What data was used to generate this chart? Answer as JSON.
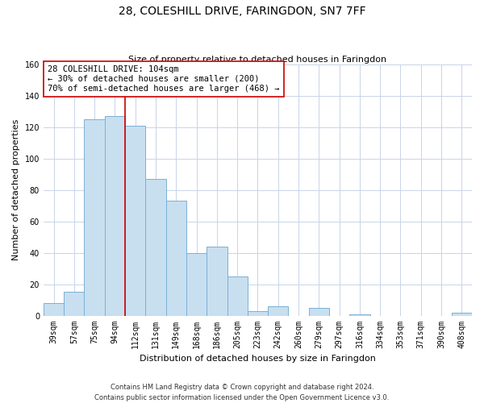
{
  "title": "28, COLESHILL DRIVE, FARINGDON, SN7 7FF",
  "subtitle": "Size of property relative to detached houses in Faringdon",
  "xlabel": "Distribution of detached houses by size in Faringdon",
  "ylabel": "Number of detached properties",
  "bar_labels": [
    "39sqm",
    "57sqm",
    "75sqm",
    "94sqm",
    "112sqm",
    "131sqm",
    "149sqm",
    "168sqm",
    "186sqm",
    "205sqm",
    "223sqm",
    "242sqm",
    "260sqm",
    "279sqm",
    "297sqm",
    "316sqm",
    "334sqm",
    "353sqm",
    "371sqm",
    "390sqm",
    "408sqm"
  ],
  "bar_values": [
    8,
    15,
    125,
    127,
    121,
    87,
    73,
    40,
    44,
    25,
    3,
    6,
    0,
    5,
    0,
    1,
    0,
    0,
    0,
    0,
    2
  ],
  "bar_color": "#c8dff0",
  "bar_edge_color": "#7ab0d4",
  "vline_x": 3.5,
  "vline_color": "#cc0000",
  "annotation_line1": "28 COLESHILL DRIVE: 104sqm",
  "annotation_line2": "← 30% of detached houses are smaller (200)",
  "annotation_line3": "70% of semi-detached houses are larger (468) →",
  "annotation_box_color": "#ffffff",
  "annotation_box_edge": "#cc0000",
  "ylim": [
    0,
    160
  ],
  "yticks": [
    0,
    20,
    40,
    60,
    80,
    100,
    120,
    140,
    160
  ],
  "footer_line1": "Contains HM Land Registry data © Crown copyright and database right 2024.",
  "footer_line2": "Contains public sector information licensed under the Open Government Licence v3.0.",
  "bg_color": "#ffffff",
  "grid_color": "#c8d4e8",
  "title_fontsize": 10,
  "subtitle_fontsize": 8,
  "axis_label_fontsize": 8,
  "tick_fontsize": 7,
  "annotation_fontsize": 7.5,
  "footer_fontsize": 6
}
